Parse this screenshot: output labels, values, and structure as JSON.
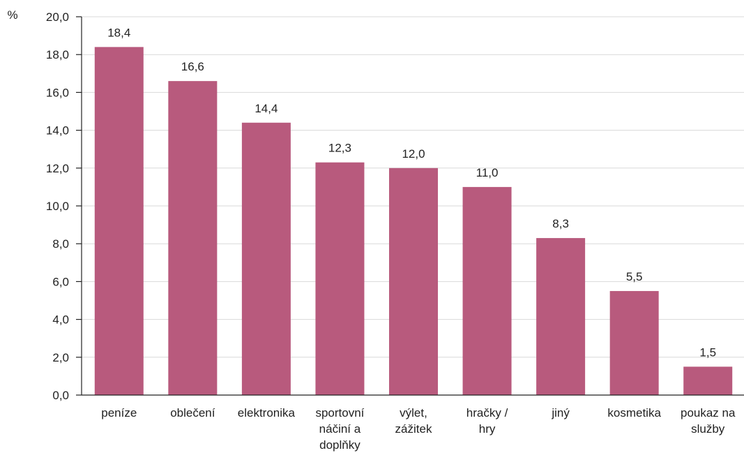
{
  "chart_data": {
    "type": "bar",
    "categories": [
      [
        "peníze"
      ],
      [
        "oblečení"
      ],
      [
        "elektronika"
      ],
      [
        "sportovní",
        "náčiní a",
        "doplňky"
      ],
      [
        "výlet,",
        "zážitek"
      ],
      [
        "hračky /",
        "hry"
      ],
      [
        "jiný"
      ],
      [
        "kosmetika"
      ],
      [
        "poukaz na",
        "služby"
      ]
    ],
    "values": [
      18.4,
      16.6,
      14.4,
      12.3,
      12.0,
      11.0,
      8.3,
      5.5,
      1.5
    ],
    "data_labels": [
      "18,4",
      "16,6",
      "14,4",
      "12,3",
      "12,0",
      "11,0",
      "8,3",
      "5,5",
      "1,5"
    ],
    "y_ticks": [
      0,
      2,
      4,
      6,
      8,
      10,
      12,
      14,
      16,
      18,
      20
    ],
    "y_tick_labels": [
      "0,0",
      "2,0",
      "4,0",
      "6,0",
      "8,0",
      "10,0",
      "12,0",
      "14,0",
      "16,0",
      "18,0",
      "20,0"
    ],
    "ylim": [
      0,
      20
    ],
    "y_unit": "%",
    "title": "",
    "xlabel": "",
    "ylabel": "",
    "grid": true,
    "bar_color": "#B85A7D"
  }
}
